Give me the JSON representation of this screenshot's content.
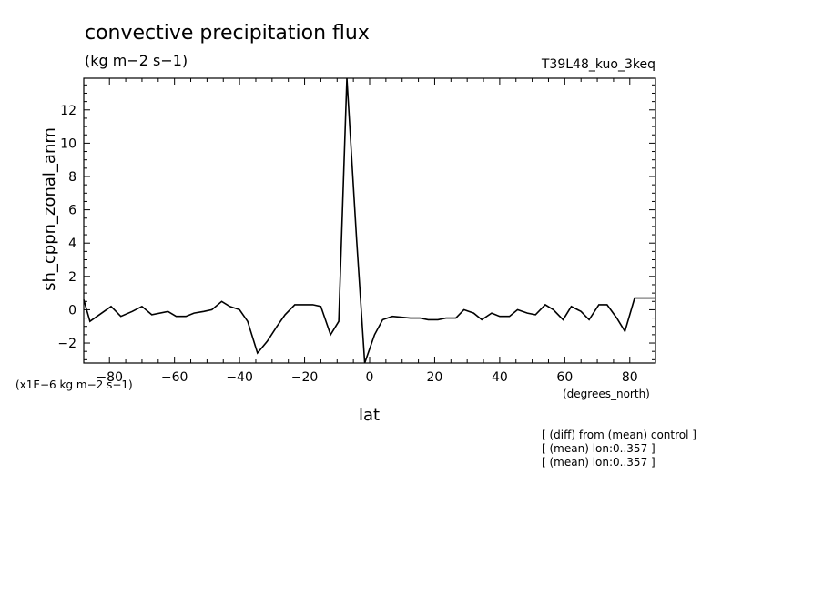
{
  "chart_data": {
    "type": "line",
    "title": "convective precipitation flux",
    "subtitle": "(kg m−2 s−1)",
    "run_label": "T39L48_kuo_3keq",
    "xlabel": "lat",
    "ylabel": "sh_cppn_zonal_anm",
    "y_units": "(x1E−6 kg m−2 s−1)",
    "x_units": "(degrees_north)",
    "xlim": [
      -87.9,
      87.9
    ],
    "ylim": [
      -3.2,
      13.9
    ],
    "x_ticks": [
      -80,
      -60,
      -40,
      -20,
      0,
      20,
      40,
      60,
      80
    ],
    "x_tick_labels": [
      "−80",
      "−60",
      "−40",
      "−20",
      "0",
      "20",
      "40",
      "60",
      "80"
    ],
    "y_ticks": [
      -2,
      0,
      2,
      4,
      6,
      8,
      10,
      12
    ],
    "y_tick_labels": [
      "−2",
      "0",
      "2",
      "4",
      "6",
      "8",
      "10",
      "12"
    ],
    "grid": false,
    "series": [
      {
        "x": [
          -87.9,
          -86.0,
          -79.5,
          -76.5,
          -73.0,
          -70.0,
          -67.0,
          -62.0,
          -59.5,
          -56.5,
          -54.0,
          -51.0,
          -48.5,
          -45.5,
          -43.0,
          -40.0,
          -37.5,
          -34.5,
          -31.5,
          -28.5,
          -26.0,
          -23.0,
          -20.5,
          -17.5,
          -15.0,
          -12.0,
          -9.5,
          -7.0,
          -4.0,
          -1.5,
          1.5,
          4.0,
          7.0,
          12.5,
          15.5,
          18.0,
          21.0,
          23.5,
          26.5,
          29.0,
          32.0,
          34.5,
          37.5,
          40.0,
          43.0,
          45.5,
          48.5,
          51.0,
          54.0,
          56.5,
          59.5,
          62.0,
          65.0,
          67.5,
          70.5,
          73.0,
          76.0,
          78.5,
          81.5,
          84.0,
          86.0,
          87.9
        ],
        "y": [
          0.6,
          -0.7,
          0.2,
          -0.4,
          -0.1,
          0.2,
          -0.3,
          -0.1,
          -0.4,
          -0.4,
          -0.2,
          -0.1,
          0.0,
          0.5,
          0.2,
          0.0,
          -0.7,
          -2.6,
          -1.9,
          -1.0,
          -0.3,
          0.3,
          0.3,
          0.3,
          0.2,
          -1.5,
          -0.7,
          13.9,
          4.2,
          -3.2,
          -1.5,
          -0.6,
          -0.4,
          -0.5,
          -0.5,
          -0.6,
          -0.6,
          -0.5,
          -0.5,
          0.0,
          -0.2,
          -0.6,
          -0.2,
          -0.4,
          -0.4,
          0.0,
          -0.2,
          -0.3,
          0.3,
          0.0,
          -0.6,
          0.2,
          -0.1,
          -0.6,
          0.3,
          0.3,
          -0.5,
          -1.3,
          0.7,
          0.7,
          0.7,
          0.7
        ]
      }
    ]
  },
  "notes": [
    "[ (diff) from (mean) control ]",
    "[ (mean) lon:0..357 ]",
    "[ (mean) lon:0..357 ]"
  ]
}
